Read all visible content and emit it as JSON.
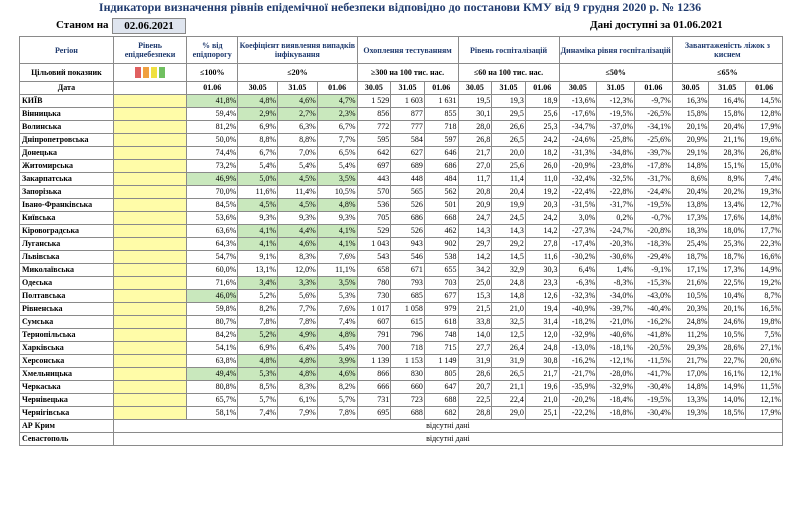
{
  "title": "Індикатори визначення рівнів епідемічної небезпеки відповідно до постанови КМУ від 9 грудня 2020 р. № 1236",
  "as_of_label": "Станом на",
  "as_of_date": "02.06.2021",
  "data_available": "Дані доступні за  01.06.2021",
  "headers": {
    "region": "Регіон",
    "danger_level": "Рівень епіднебезпеки",
    "pct_threshold": "% від епідпорогу",
    "detection_coef": "Коефіцієнт виявлення випадків інфікування",
    "testing": "Охоплення тестуванням",
    "hospital_level": "Рівень госпіталізацій",
    "hospital_dynamics": "Динаміка рівня госпіталізацій",
    "oxygen_beds": "Завантаженість ліжок з киснем"
  },
  "target_label": "Цільовий показник",
  "targets": {
    "pct_threshold": "≤100%",
    "detection_coef": "≤20%",
    "testing": "≥300 на 100 тис. нас.",
    "hospital_level": "≤60 на 100 тис. нас.",
    "hospital_dynamics": "≤50%",
    "oxygen_beds": "≤65%"
  },
  "swatch_colors": [
    "#e06060",
    "#f0a040",
    "#f0e040",
    "#70c060"
  ],
  "date_label": "Дата",
  "date_cols": {
    "pct": "01.06",
    "det": [
      "30.05",
      "31.05",
      "01.06"
    ],
    "test": [
      "30.05",
      "31.05",
      "01.06"
    ],
    "hosp": [
      "30.05",
      "31.05",
      "01.06"
    ],
    "dyn": [
      "30.05",
      "31.05",
      "01.06"
    ],
    "oxy": [
      "30.05",
      "31.05",
      "01.06"
    ]
  },
  "rows": [
    {
      "region": "КИЇВ",
      "pct": "41,8%",
      "pct_g": true,
      "det": [
        "4,8%",
        "4,6%",
        "4,7%"
      ],
      "det_g": true,
      "test": [
        "1 529",
        "1 603",
        "1 631"
      ],
      "hosp": [
        "19,5",
        "19,3",
        "18,9"
      ],
      "dyn": [
        "-13,6%",
        "-12,3%",
        "-9,7%"
      ],
      "oxy": [
        "16,3%",
        "16,4%",
        "14,5%"
      ]
    },
    {
      "region": "Вінницька",
      "pct": "59,4%",
      "pct_g": false,
      "det": [
        "2,9%",
        "2,7%",
        "2,3%"
      ],
      "det_g": true,
      "test": [
        "856",
        "877",
        "855"
      ],
      "hosp": [
        "30,1",
        "29,5",
        "25,6"
      ],
      "dyn": [
        "-17,6%",
        "-19,5%",
        "-26,5%"
      ],
      "oxy": [
        "15,8%",
        "15,8%",
        "12,8%"
      ]
    },
    {
      "region": "Волинська",
      "pct": "81,2%",
      "pct_g": false,
      "det": [
        "6,9%",
        "6,3%",
        "6,7%"
      ],
      "det_g": false,
      "test": [
        "772",
        "777",
        "718"
      ],
      "hosp": [
        "28,0",
        "26,6",
        "25,3"
      ],
      "dyn": [
        "-34,7%",
        "-37,0%",
        "-34,1%"
      ],
      "oxy": [
        "20,1%",
        "20,4%",
        "17,9%"
      ]
    },
    {
      "region": "Дніпропетровська",
      "pct": "50,0%",
      "pct_g": false,
      "det": [
        "8,8%",
        "8,8%",
        "7,7%"
      ],
      "det_g": false,
      "test": [
        "595",
        "584",
        "597"
      ],
      "hosp": [
        "26,8",
        "26,5",
        "24,2"
      ],
      "dyn": [
        "-24,6%",
        "-25,8%",
        "-25,6%"
      ],
      "oxy": [
        "20,9%",
        "21,1%",
        "19,6%"
      ]
    },
    {
      "region": "Донецька",
      "pct": "74,4%",
      "pct_g": false,
      "det": [
        "6,7%",
        "7,0%",
        "6,5%"
      ],
      "det_g": false,
      "test": [
        "642",
        "627",
        "646"
      ],
      "hosp": [
        "21,7",
        "20,0",
        "18,2"
      ],
      "dyn": [
        "-31,3%",
        "-34,8%",
        "-39,7%"
      ],
      "oxy": [
        "29,1%",
        "28,3%",
        "26,8%"
      ]
    },
    {
      "region": "Житомирська",
      "pct": "73,2%",
      "pct_g": false,
      "det": [
        "5,4%",
        "5,4%",
        "5,4%"
      ],
      "det_g": false,
      "test": [
        "697",
        "689",
        "686"
      ],
      "hosp": [
        "27,0",
        "25,6",
        "26,0"
      ],
      "dyn": [
        "-20,9%",
        "-23,8%",
        "-17,8%"
      ],
      "oxy": [
        "14,8%",
        "15,1%",
        "15,0%"
      ]
    },
    {
      "region": "Закарпатська",
      "pct": "46,9%",
      "pct_g": true,
      "det": [
        "5,0%",
        "4,5%",
        "3,5%"
      ],
      "det_g": true,
      "test": [
        "443",
        "448",
        "484"
      ],
      "hosp": [
        "11,7",
        "11,4",
        "11,0"
      ],
      "dyn": [
        "-32,4%",
        "-32,5%",
        "-31,7%"
      ],
      "oxy": [
        "8,6%",
        "8,9%",
        "7,4%"
      ]
    },
    {
      "region": "Запорізька",
      "pct": "70,0%",
      "pct_g": false,
      "det": [
        "11,6%",
        "11,4%",
        "10,5%"
      ],
      "det_g": false,
      "test": [
        "570",
        "565",
        "562"
      ],
      "hosp": [
        "20,8",
        "20,4",
        "19,2"
      ],
      "dyn": [
        "-22,4%",
        "-22,8%",
        "-24,4%"
      ],
      "oxy": [
        "20,4%",
        "20,2%",
        "19,3%"
      ]
    },
    {
      "region": "Івано-Франківська",
      "pct": "84,5%",
      "pct_g": false,
      "det": [
        "4,5%",
        "4,5%",
        "4,8%"
      ],
      "det_g": true,
      "test": [
        "536",
        "526",
        "501"
      ],
      "hosp": [
        "20,9",
        "19,9",
        "20,3"
      ],
      "dyn": [
        "-31,5%",
        "-31,7%",
        "-19,5%"
      ],
      "oxy": [
        "13,8%",
        "13,4%",
        "12,7%"
      ]
    },
    {
      "region": "Київська",
      "pct": "53,6%",
      "pct_g": false,
      "det": [
        "9,3%",
        "9,3%",
        "9,3%"
      ],
      "det_g": false,
      "test": [
        "705",
        "686",
        "668"
      ],
      "hosp": [
        "24,7",
        "24,5",
        "24,2"
      ],
      "dyn": [
        "3,0%",
        "0,2%",
        "-0,7%"
      ],
      "oxy": [
        "17,3%",
        "17,6%",
        "14,8%"
      ]
    },
    {
      "region": "Кіровоградська",
      "pct": "63,6%",
      "pct_g": false,
      "det": [
        "4,1%",
        "4,4%",
        "4,1%"
      ],
      "det_g": true,
      "test": [
        "529",
        "526",
        "462"
      ],
      "hosp": [
        "14,3",
        "14,3",
        "14,2"
      ],
      "dyn": [
        "-27,3%",
        "-24,7%",
        "-20,8%"
      ],
      "oxy": [
        "18,3%",
        "18,0%",
        "17,7%"
      ]
    },
    {
      "region": "Луганська",
      "pct": "64,3%",
      "pct_g": false,
      "det": [
        "4,1%",
        "4,6%",
        "4,1%"
      ],
      "det_g": true,
      "test": [
        "1 043",
        "943",
        "902"
      ],
      "hosp": [
        "29,7",
        "29,2",
        "27,8"
      ],
      "dyn": [
        "-17,4%",
        "-20,3%",
        "-18,3%"
      ],
      "oxy": [
        "25,4%",
        "25,3%",
        "22,3%"
      ]
    },
    {
      "region": "Львівська",
      "pct": "54,7%",
      "pct_g": false,
      "det": [
        "9,1%",
        "8,3%",
        "7,6%"
      ],
      "det_g": false,
      "test": [
        "543",
        "546",
        "538"
      ],
      "hosp": [
        "14,2",
        "14,5",
        "11,6"
      ],
      "dyn": [
        "-30,2%",
        "-30,6%",
        "-29,4%"
      ],
      "oxy": [
        "18,7%",
        "18,7%",
        "16,6%"
      ]
    },
    {
      "region": "Миколаївська",
      "pct": "60,0%",
      "pct_g": false,
      "det": [
        "13,1%",
        "12,0%",
        "11,1%"
      ],
      "det_g": false,
      "test": [
        "658",
        "671",
        "655"
      ],
      "hosp": [
        "34,2",
        "32,9",
        "30,3"
      ],
      "dyn": [
        "6,4%",
        "1,4%",
        "-9,1%"
      ],
      "oxy": [
        "17,1%",
        "17,3%",
        "14,9%"
      ]
    },
    {
      "region": "Одеська",
      "pct": "71,6%",
      "pct_g": false,
      "det": [
        "3,4%",
        "3,3%",
        "3,5%"
      ],
      "det_g": true,
      "test": [
        "780",
        "793",
        "703"
      ],
      "hosp": [
        "25,0",
        "24,8",
        "23,3"
      ],
      "dyn": [
        "-6,3%",
        "-8,3%",
        "-15,3%"
      ],
      "oxy": [
        "21,6%",
        "22,5%",
        "19,2%"
      ]
    },
    {
      "region": "Полтавська",
      "pct": "46,0%",
      "pct_g": true,
      "det": [
        "5,2%",
        "5,6%",
        "5,3%"
      ],
      "det_g": false,
      "test": [
        "730",
        "685",
        "677"
      ],
      "hosp": [
        "15,3",
        "14,8",
        "12,6"
      ],
      "dyn": [
        "-32,3%",
        "-34,0%",
        "-43,0%"
      ],
      "oxy": [
        "10,5%",
        "10,4%",
        "8,7%"
      ]
    },
    {
      "region": "Рівненська",
      "pct": "59,8%",
      "pct_g": false,
      "det": [
        "8,2%",
        "7,7%",
        "7,6%"
      ],
      "det_g": false,
      "test": [
        "1 017",
        "1 058",
        "979"
      ],
      "hosp": [
        "21,5",
        "21,0",
        "19,4"
      ],
      "dyn": [
        "-40,9%",
        "-39,7%",
        "-40,4%"
      ],
      "oxy": [
        "20,3%",
        "20,1%",
        "16,5%"
      ]
    },
    {
      "region": "Сумська",
      "pct": "80,7%",
      "pct_g": false,
      "det": [
        "7,8%",
        "7,8%",
        "7,4%"
      ],
      "det_g": false,
      "test": [
        "607",
        "615",
        "618"
      ],
      "hosp": [
        "33,8",
        "32,5",
        "31,4"
      ],
      "dyn": [
        "-18,2%",
        "-21,0%",
        "-16,2%"
      ],
      "oxy": [
        "24,8%",
        "24,6%",
        "19,8%"
      ]
    },
    {
      "region": "Тернопільська",
      "pct": "84,2%",
      "pct_g": false,
      "det": [
        "5,2%",
        "4,9%",
        "4,8%"
      ],
      "det_g": true,
      "test": [
        "791",
        "796",
        "748"
      ],
      "hosp": [
        "14,0",
        "12,5",
        "12,0"
      ],
      "dyn": [
        "-32,9%",
        "-40,6%",
        "-41,8%"
      ],
      "oxy": [
        "11,2%",
        "10,5%",
        "7,5%"
      ]
    },
    {
      "region": "Харківська",
      "pct": "54,1%",
      "pct_g": false,
      "det": [
        "6,9%",
        "6,4%",
        "5,4%"
      ],
      "det_g": false,
      "test": [
        "700",
        "718",
        "715"
      ],
      "hosp": [
        "27,7",
        "26,4",
        "24,8"
      ],
      "dyn": [
        "-13,0%",
        "-18,1%",
        "-20,5%"
      ],
      "oxy": [
        "29,3%",
        "28,6%",
        "27,1%"
      ]
    },
    {
      "region": "Херсонська",
      "pct": "63,8%",
      "pct_g": false,
      "det": [
        "4,8%",
        "4,8%",
        "3,9%"
      ],
      "det_g": true,
      "test": [
        "1 139",
        "1 153",
        "1 149"
      ],
      "hosp": [
        "31,9",
        "31,9",
        "30,8"
      ],
      "dyn": [
        "-16,2%",
        "-12,1%",
        "-11,5%"
      ],
      "oxy": [
        "21,7%",
        "22,7%",
        "20,6%"
      ]
    },
    {
      "region": "Хмельницька",
      "pct": "49,4%",
      "pct_g": true,
      "det": [
        "5,3%",
        "4,8%",
        "4,6%"
      ],
      "det_g": true,
      "test": [
        "866",
        "830",
        "805"
      ],
      "hosp": [
        "28,6",
        "26,5",
        "21,7"
      ],
      "dyn": [
        "-21,7%",
        "-28,0%",
        "-41,7%"
      ],
      "oxy": [
        "17,0%",
        "16,1%",
        "12,1%"
      ]
    },
    {
      "region": "Черкаська",
      "pct": "80,8%",
      "pct_g": false,
      "det": [
        "8,5%",
        "8,3%",
        "8,2%"
      ],
      "det_g": false,
      "test": [
        "666",
        "660",
        "647"
      ],
      "hosp": [
        "20,7",
        "21,1",
        "19,6"
      ],
      "dyn": [
        "-35,9%",
        "-32,9%",
        "-30,4%"
      ],
      "oxy": [
        "14,8%",
        "14,9%",
        "11,5%"
      ]
    },
    {
      "region": "Чернівецька",
      "pct": "65,7%",
      "pct_g": false,
      "det": [
        "5,7%",
        "6,1%",
        "5,7%"
      ],
      "det_g": false,
      "test": [
        "731",
        "723",
        "688"
      ],
      "hosp": [
        "22,5",
        "22,4",
        "21,0"
      ],
      "dyn": [
        "-20,2%",
        "-18,4%",
        "-19,5%"
      ],
      "oxy": [
        "13,3%",
        "14,0%",
        "12,1%"
      ]
    },
    {
      "region": "Чернігівська",
      "pct": "58,1%",
      "pct_g": false,
      "det": [
        "7,4%",
        "7,9%",
        "7,8%"
      ],
      "det_g": false,
      "test": [
        "695",
        "688",
        "682"
      ],
      "hosp": [
        "28,8",
        "29,0",
        "25,1"
      ],
      "dyn": [
        "-22,2%",
        "-18,8%",
        "-30,4%"
      ],
      "oxy": [
        "19,3%",
        "18,5%",
        "17,9%"
      ]
    }
  ],
  "no_data_rows": [
    {
      "region": "АР Крим",
      "note": "відсутні дані"
    },
    {
      "region": "Севастополь",
      "note": "відсутні дані"
    }
  ]
}
